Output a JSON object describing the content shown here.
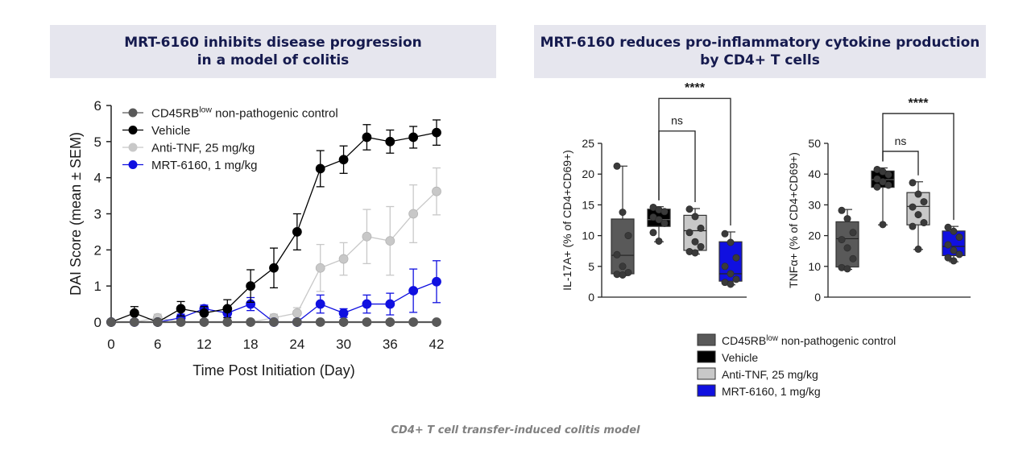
{
  "panels": {
    "left_title_line1": "MRT-6160 inhibits disease progression",
    "left_title_line2": "in a model of colitis",
    "right_title_line1": "MRT-6160 reduces pro-inflammatory cytokine production",
    "right_title_line2": "by CD4+ T cells"
  },
  "footnote": "CD4+ T cell transfer-induced colitis model",
  "colors": {
    "control": "#595959",
    "vehicle": "#000000",
    "anti_tnf": "#c8c8c8",
    "mrt": "#1010e0"
  },
  "chart_data": [
    {
      "type": "line",
      "title": "MRT-6160 inhibits disease progression in a model of colitis",
      "xlabel": "Time Post Initiation (Day)",
      "ylabel": "DAI Score (mean ± SEM)",
      "xlim": [
        0,
        42
      ],
      "ylim": [
        0,
        6
      ],
      "xticks": [
        "0",
        "6",
        "12",
        "18",
        "24",
        "30",
        "36",
        "42"
      ],
      "yticks": [
        "0",
        "1",
        "2",
        "3",
        "4",
        "5",
        "6"
      ],
      "legend_position": "top-left",
      "legend": [
        {
          "label": "CD45RB",
          "sup": "low",
          "tail": " non-pathogenic control",
          "color": "#595959"
        },
        {
          "label": "Vehicle",
          "sup": "",
          "tail": "",
          "color": "#000000"
        },
        {
          "label": "Anti-TNF, 25 mg/kg",
          "sup": "",
          "tail": "",
          "color": "#c8c8c8"
        },
        {
          "label": "MRT-6160, 1 mg/kg",
          "sup": "",
          "tail": "",
          "color": "#1010e0"
        }
      ],
      "x": [
        0,
        3,
        6,
        9,
        12,
        15,
        18,
        21,
        24,
        27,
        30,
        33,
        36,
        39,
        42
      ],
      "series": [
        {
          "name": "CD45RBlow non-pathogenic control",
          "color": "#595959",
          "values": [
            0,
            0,
            0,
            0,
            0,
            0,
            0,
            0,
            0,
            0,
            0,
            0,
            0,
            0,
            0
          ],
          "errors": [
            0,
            0,
            0,
            0,
            0,
            0,
            0,
            0,
            0,
            0,
            0,
            0,
            0,
            0,
            0
          ]
        },
        {
          "name": "Vehicle",
          "color": "#000000",
          "values": [
            0,
            0.25,
            0,
            0.37,
            0.25,
            0.37,
            1.0,
            1.5,
            2.5,
            4.25,
            4.5,
            5.12,
            5.0,
            5.12,
            5.25
          ],
          "errors": [
            0,
            0.18,
            0,
            0.2,
            0.18,
            0.25,
            0.45,
            0.55,
            0.5,
            0.5,
            0.38,
            0.35,
            0.32,
            0.3,
            0.35
          ]
        },
        {
          "name": "Anti-TNF, 25 mg/kg",
          "color": "#c8c8c8",
          "values": [
            0,
            0,
            0.12,
            0,
            0,
            0,
            0,
            0.12,
            0.25,
            1.5,
            1.75,
            2.37,
            2.25,
            3.0,
            3.62
          ],
          "errors": [
            0,
            0,
            0.1,
            0,
            0,
            0,
            0,
            0.1,
            0.15,
            0.65,
            0.45,
            0.75,
            0.95,
            0.8,
            0.65
          ]
        },
        {
          "name": "MRT-6160, 1 mg/kg",
          "color": "#1010e0",
          "values": [
            0,
            0,
            0,
            0.12,
            0.37,
            0.25,
            0.5,
            0,
            0,
            0.5,
            0.25,
            0.5,
            0.5,
            0.87,
            1.12
          ],
          "errors": [
            0,
            0,
            0,
            0.1,
            0.1,
            0.12,
            0.18,
            0,
            0,
            0.25,
            0.12,
            0.25,
            0.3,
            0.6,
            0.58
          ]
        }
      ]
    },
    {
      "type": "box",
      "title": "IL-17A+ (% of CD4+CD69+)",
      "ylabel": "IL-17A+ (% of CD4+CD69+)",
      "ylim": [
        0,
        25
      ],
      "yticks": [
        "0",
        "5",
        "10",
        "15",
        "20",
        "25"
      ],
      "groups": [
        {
          "name": "CD45RBlow non-pathogenic control",
          "color": "#595959",
          "min": 3.5,
          "q1": 3.8,
          "median": 6.8,
          "q3": 12.7,
          "max": 21.3,
          "points": [
            21.3,
            13.8,
            10.0,
            6.9,
            5.0,
            4.0,
            3.7,
            3.6
          ]
        },
        {
          "name": "Vehicle",
          "color": "#000000",
          "min": 9.0,
          "q1": 11.5,
          "median": 12.6,
          "q3": 14.3,
          "max": 14.7,
          "points": [
            14.6,
            14.2,
            13.9,
            13.0,
            12.6,
            12.0,
            10.5,
            9.1
          ]
        },
        {
          "name": "Anti-TNF, 25 mg/kg",
          "color": "#c8c8c8",
          "min": 7.0,
          "q1": 7.6,
          "median": 10.8,
          "q3": 13.3,
          "max": 14.4,
          "points": [
            14.3,
            13.1,
            11.2,
            10.5,
            9.0,
            8.2,
            7.4,
            7.2
          ]
        },
        {
          "name": "MRT-6160, 1 mg/kg",
          "color": "#1010e0",
          "min": 2.0,
          "q1": 2.6,
          "median": 3.8,
          "q3": 9.0,
          "max": 10.6,
          "points": [
            10.3,
            8.9,
            6.4,
            5.0,
            3.8,
            2.9,
            2.4,
            2.1
          ]
        }
      ],
      "annotations": [
        {
          "text": "****",
          "from": 1,
          "to": 3,
          "level": 32.3
        },
        {
          "text": "ns",
          "from": 1,
          "to": 2,
          "level": 27.0
        }
      ]
    },
    {
      "type": "box",
      "title": "TNFα+ (% of CD4+CD69+)",
      "ylabel": "TNFα+ (% of CD4+CD69+)",
      "ylim": [
        0,
        50
      ],
      "yticks": [
        "0",
        "10",
        "20",
        "30",
        "40",
        "50"
      ],
      "groups": [
        {
          "name": "CD45RBlow non-pathogenic control",
          "color": "#595959",
          "min": 9.0,
          "q1": 9.8,
          "median": 19.0,
          "q3": 24.5,
          "max": 28.5,
          "points": [
            28.2,
            25.5,
            21.0,
            18.7,
            16.0,
            12.5,
            9.6,
            9.2
          ]
        },
        {
          "name": "Vehicle",
          "color": "#000000",
          "min": 23.5,
          "q1": 35.7,
          "median": 38.2,
          "q3": 41.0,
          "max": 42.0,
          "points": [
            41.5,
            40.8,
            39.8,
            38.4,
            37.5,
            36.4,
            35.8,
            23.6
          ]
        },
        {
          "name": "Anti-TNF, 25 mg/kg",
          "color": "#c8c8c8",
          "min": 15.5,
          "q1": 23.5,
          "median": 29.5,
          "q3": 34.0,
          "max": 37.5,
          "points": [
            37.2,
            33.5,
            31.0,
            29.3,
            26.8,
            24.2,
            23.0,
            15.6
          ]
        },
        {
          "name": "MRT-6160, 1 mg/kg",
          "color": "#1010e0",
          "min": 11.5,
          "q1": 13.5,
          "median": 16.5,
          "q3": 21.5,
          "max": 23.0,
          "points": [
            22.7,
            21.4,
            19.5,
            17.0,
            15.2,
            13.9,
            12.8,
            11.8
          ]
        }
      ],
      "annotations": [
        {
          "text": "****",
          "from": 1,
          "to": 3,
          "level": 59.7
        },
        {
          "text": "ns",
          "from": 1,
          "to": 2,
          "level": 47.4
        }
      ]
    }
  ],
  "box_legend": [
    {
      "label": "CD45RB",
      "sup": "low",
      "tail": " non-pathogenic control",
      "color": "#595959"
    },
    {
      "label": "Vehicle",
      "sup": "",
      "tail": "",
      "color": "#000000"
    },
    {
      "label": "Anti-TNF, 25 mg/kg",
      "sup": "",
      "tail": "",
      "color": "#c8c8c8"
    },
    {
      "label": "MRT-6160, 1 mg/kg",
      "sup": "",
      "tail": "",
      "color": "#1010e0"
    }
  ]
}
